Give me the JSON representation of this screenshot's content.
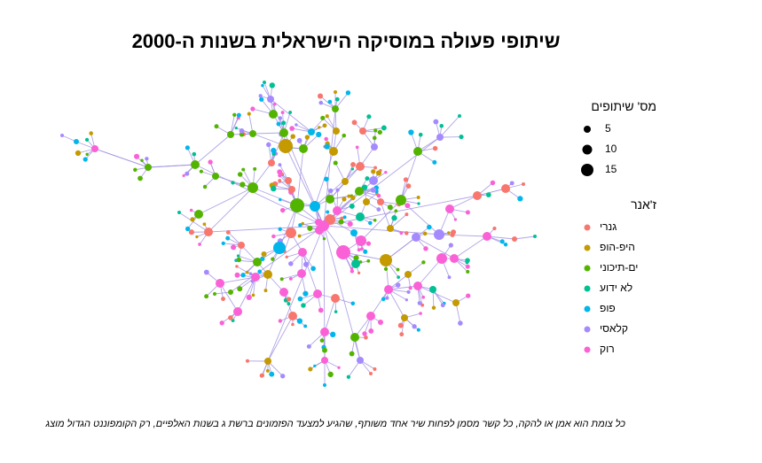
{
  "title": "שיתופי פעולה במוסיקה הישראלית בשנות ה-2000",
  "caption": "כל צומת הוא אמן או להקה, כל קשר מסמן לפחות שיר אחד משותף, שהגיע למצעד הפזמונים ברשת ג בשנות האלפיים, רק הקומפוננט הגדול מוצג",
  "legend": {
    "size_title": "מס' שיתופים",
    "sizes": [
      {
        "label": "5",
        "value": 5
      },
      {
        "label": "10",
        "value": 10
      },
      {
        "label": "15",
        "value": 15
      }
    ],
    "genre_title": "ז'אנר",
    "genres": [
      {
        "label": "גנרי",
        "color": "#F8766D"
      },
      {
        "label": "היפ-הופ",
        "color": "#C49A00"
      },
      {
        "label": "ים-תיכוני",
        "color": "#53B400"
      },
      {
        "label": "לא ידוע",
        "color": "#00C094"
      },
      {
        "label": "פופ",
        "color": "#00B6EB"
      },
      {
        "label": "קלאסי",
        "color": "#A58AFF"
      },
      {
        "label": "רוק",
        "color": "#FB61D7"
      }
    ]
  },
  "colors": {
    "edge": "#9E8FE0"
  }
}
